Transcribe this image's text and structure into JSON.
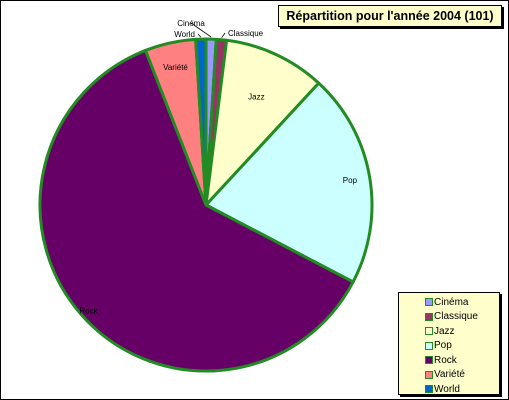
{
  "chart_data": {
    "type": "pie",
    "title": "Répartition pour l'année 2004 (101)",
    "categories": [
      "Cinéma",
      "Classique",
      "Jazz",
      "Pop",
      "Rock",
      "Variété",
      "World"
    ],
    "values": [
      1,
      1,
      10,
      21,
      62,
      5,
      1
    ],
    "slice_labels": [
      "Cinéma",
      "Classique",
      "Jazz",
      "Pop",
      "Rock",
      "Variété",
      "World"
    ],
    "colors": [
      "#9999ff",
      "#993366",
      "#ffffcc",
      "#ccffff",
      "#660066",
      "#ff8080",
      "#0066cc"
    ],
    "edge_color": "#228b22",
    "legend": {
      "placement": "bottom-right",
      "entries": [
        "Cinéma",
        "Classique",
        "Jazz",
        "Pop",
        "Rock",
        "Variété",
        "World"
      ]
    }
  }
}
